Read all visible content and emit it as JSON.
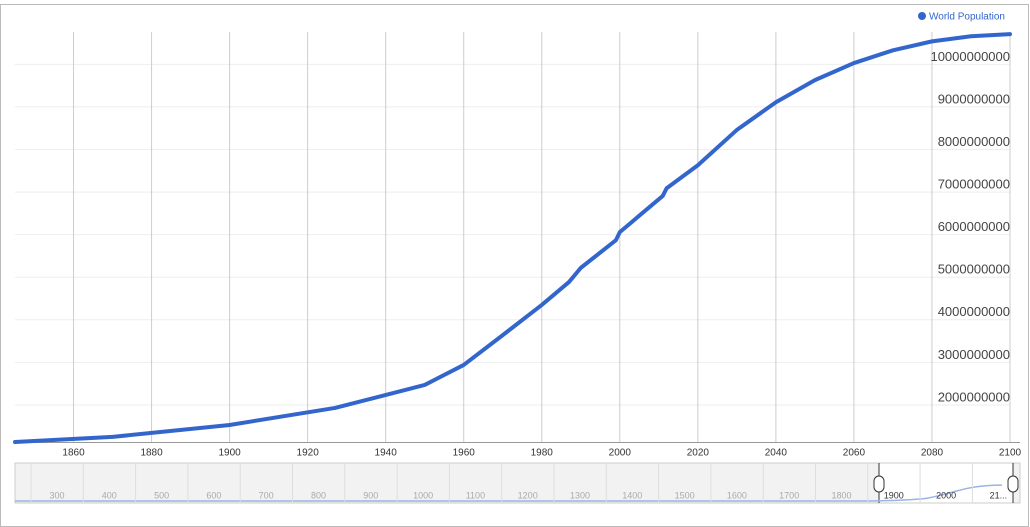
{
  "chart_data": {
    "type": "line",
    "legend": "top-right",
    "grid": true,
    "xlim": [
      1845,
      2100
    ],
    "xticks": [
      1860,
      1880,
      1900,
      1920,
      1940,
      1960,
      1980,
      2000,
      2020,
      2040,
      2060,
      2080,
      2100
    ],
    "ylim": [
      1130000000,
      10760000000
    ],
    "yticks": [
      2000000000,
      3000000000,
      4000000000,
      5000000000,
      6000000000,
      7000000000,
      8000000000,
      9000000000,
      10000000000
    ],
    "x": [
      1845,
      1870,
      1900,
      1927,
      1950,
      1960,
      1970,
      1980,
      1987,
      1990,
      1999,
      2000,
      2011,
      2012,
      2020,
      2030,
      2040,
      2050,
      2060,
      2070,
      2080,
      2090,
      2100
    ],
    "series": [
      {
        "name": "World Population",
        "color": "#3366cc",
        "values": [
          1130000000,
          1250000000,
          1530000000,
          1930000000,
          2470000000,
          2940000000,
          3640000000,
          4350000000,
          4890000000,
          5220000000,
          5870000000,
          6060000000,
          6910000000,
          7090000000,
          7630000000,
          8460000000,
          9110000000,
          9630000000,
          10030000000,
          10330000000,
          10540000000,
          10660000000,
          10710000000
        ]
      }
    ],
    "navigator_ticks": [
      "300",
      "400",
      "500",
      "600",
      "700",
      "800",
      "900",
      "1000",
      "1100",
      "1200",
      "1300",
      "1400",
      "1500",
      "1600",
      "1700",
      "1800",
      "1900",
      "2000",
      "21..."
    ]
  }
}
